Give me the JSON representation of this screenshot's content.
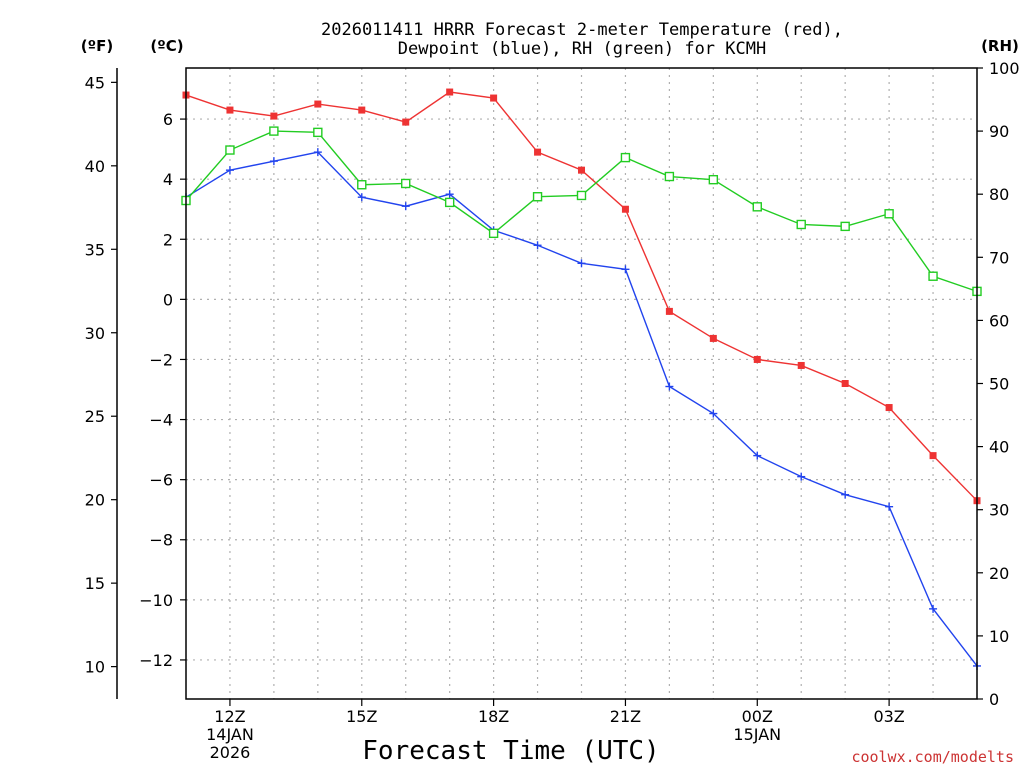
{
  "chart_data": {
    "type": "line",
    "title": [
      "2026011411 HRRR Forecast 2-meter Temperature (red),",
      "Dewpoint (blue), RH (green) for KCMH"
    ],
    "xlabel": "Forecast Time (UTC)",
    "units": {
      "fahrenheit": "(ºF)",
      "celsius": "(ºC)",
      "rh": "(RH)"
    },
    "x_hours": [
      11,
      12,
      13,
      14,
      15,
      16,
      17,
      18,
      19,
      20,
      21,
      22,
      23,
      24,
      25,
      26,
      27,
      28,
      29
    ],
    "x_range": [
      11,
      29
    ],
    "x_ticks": [
      {
        "hour": 12,
        "lines": [
          "12Z",
          "14JAN",
          "2026"
        ]
      },
      {
        "hour": 15,
        "lines": [
          "15Z"
        ]
      },
      {
        "hour": 18,
        "lines": [
          "18Z"
        ]
      },
      {
        "hour": 21,
        "lines": [
          "21Z"
        ]
      },
      {
        "hour": 24,
        "lines": [
          "00Z",
          "15JAN"
        ]
      },
      {
        "hour": 27,
        "lines": [
          "03Z"
        ]
      }
    ],
    "celsius_axis": {
      "range": [
        -13.3,
        7.7
      ],
      "ticks": [
        6,
        4,
        2,
        0,
        -2,
        -4,
        -6,
        -8,
        -10,
        -12
      ],
      "labels": [
        "6",
        "4",
        "2",
        "0",
        "−2",
        "−4",
        "−6",
        "−8",
        "−10",
        "−12"
      ]
    },
    "fahrenheit_ticks": [
      45,
      40,
      35,
      30,
      25,
      20,
      15,
      10
    ],
    "rh_axis": {
      "range": [
        0,
        100
      ],
      "ticks": [
        100,
        90,
        80,
        70,
        60,
        50,
        40,
        30,
        20,
        10,
        0
      ]
    },
    "series": [
      {
        "name": "Temperature",
        "color": "#ee3333",
        "marker": "filled-square",
        "values": [
          6.8,
          6.3,
          6.1,
          6.5,
          6.3,
          5.9,
          6.9,
          6.7,
          4.9,
          4.3,
          3.0,
          -0.4,
          -1.3,
          -2.0,
          -2.2,
          -2.8,
          -3.6,
          -5.2,
          -6.7
        ]
      },
      {
        "name": "Dewpoint",
        "color": "#2244ee",
        "marker": "plus",
        "values": [
          3.4,
          4.3,
          4.6,
          4.9,
          3.4,
          3.1,
          3.5,
          2.3,
          1.8,
          1.2,
          1.0,
          -2.9,
          -3.8,
          -5.2,
          -5.9,
          -6.5,
          -6.9,
          -10.3,
          -12.2
        ]
      },
      {
        "name": "RH",
        "color": "#22cc22",
        "marker": "open-square",
        "values": [
          79,
          87,
          90,
          89.8,
          81.5,
          81.7,
          78.7,
          73.8,
          79.6,
          79.8,
          85.8,
          82.8,
          82.3,
          78,
          75.2,
          74.9,
          76.9,
          67,
          64.6
        ]
      }
    ],
    "grid": true,
    "watermark": "coolwx.com/modelts"
  }
}
